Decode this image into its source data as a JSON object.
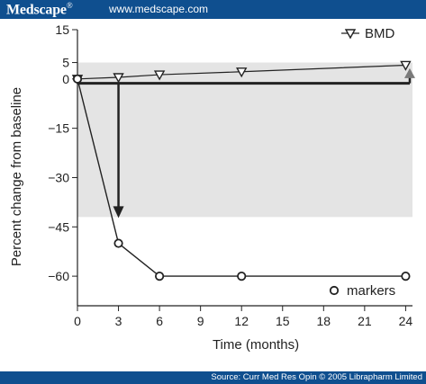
{
  "header": {
    "brand": "Medscape",
    "brand_mark": "®",
    "url": "www.medscape.com"
  },
  "footer": {
    "source": "Source: Curr Med Res Opin © 2005 Librapharm Limited"
  },
  "colors": {
    "header_bg": "#0f4f8f",
    "footer_bg": "#0f4f8f",
    "shade": "#e4e4e4",
    "ink": "#222222",
    "marker_fill": "#ffffff",
    "arrow_head_gray": "#7a7a7a"
  },
  "chart_data": {
    "type": "line",
    "xlabel": "Time (months)",
    "ylabel": "Percent change from baseline",
    "x_ticks": [
      0,
      3,
      6,
      9,
      12,
      15,
      18,
      21,
      24
    ],
    "y_ticks": [
      15,
      5,
      0,
      -15,
      -30,
      -45,
      -60
    ],
    "xlim": [
      0,
      24.5
    ],
    "ylim": [
      -69,
      15
    ],
    "shaded_band": {
      "y_from": -42,
      "y_to": 5
    },
    "series": [
      {
        "name": "BMD",
        "marker": "triangle-down",
        "x": [
          0,
          3,
          6,
          12,
          24
        ],
        "y": [
          0,
          0.5,
          1.3,
          2.2,
          4.2
        ]
      },
      {
        "name": "markers",
        "marker": "circle",
        "x": [
          0,
          3,
          6,
          12,
          24
        ],
        "y": [
          0,
          -50,
          -60,
          -60,
          -60
        ]
      }
    ],
    "annotations": {
      "down_arrow": {
        "x": 3,
        "y_from": -1.3,
        "y_to": -42
      },
      "horizontal_line": {
        "y": -1.3,
        "x_from": 0,
        "x_to": 24.3
      },
      "up_arrow": {
        "x": 24.3,
        "y_from": -1.3,
        "y_to": 3
      }
    },
    "legend": [
      "BMD",
      "markers"
    ],
    "grid": false
  }
}
